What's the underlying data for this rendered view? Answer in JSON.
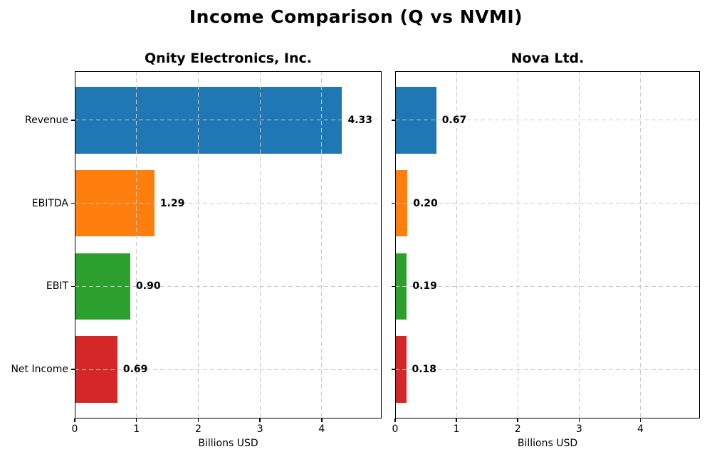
{
  "figure": {
    "title": "Income Comparison (Q vs NVMI)"
  },
  "chart_data": [
    {
      "type": "bar",
      "orientation": "horizontal",
      "title": "Qnity Electronics, Inc.",
      "categories": [
        "Revenue",
        "EBITDA",
        "EBIT",
        "Net Income"
      ],
      "values": [
        4.33,
        1.29,
        0.9,
        0.69
      ],
      "value_labels": [
        "4.33",
        "1.29",
        "0.90",
        "0.69"
      ],
      "bar_colors": [
        "#1f77b4",
        "#ff7f0e",
        "#2ca02c",
        "#d62728"
      ],
      "xlabel": "Billions USD",
      "xlim": [
        0,
        4.97
      ],
      "xticks": [
        0,
        1,
        2,
        3,
        4
      ],
      "grid": "dashed",
      "legend": "none",
      "show_category_labels": true
    },
    {
      "type": "bar",
      "orientation": "horizontal",
      "title": "Nova Ltd.",
      "categories": [
        "Revenue",
        "EBITDA",
        "EBIT",
        "Net Income"
      ],
      "values": [
        0.67,
        0.2,
        0.19,
        0.18
      ],
      "value_labels": [
        "0.67",
        "0.20",
        "0.19",
        "0.18"
      ],
      "bar_colors": [
        "#1f77b4",
        "#ff7f0e",
        "#2ca02c",
        "#d62728"
      ],
      "xlabel": "Billions USD",
      "xlim": [
        0,
        4.97
      ],
      "xticks": [
        0,
        1,
        2,
        3,
        4
      ],
      "grid": "dashed",
      "legend": "none",
      "show_category_labels": false
    }
  ]
}
